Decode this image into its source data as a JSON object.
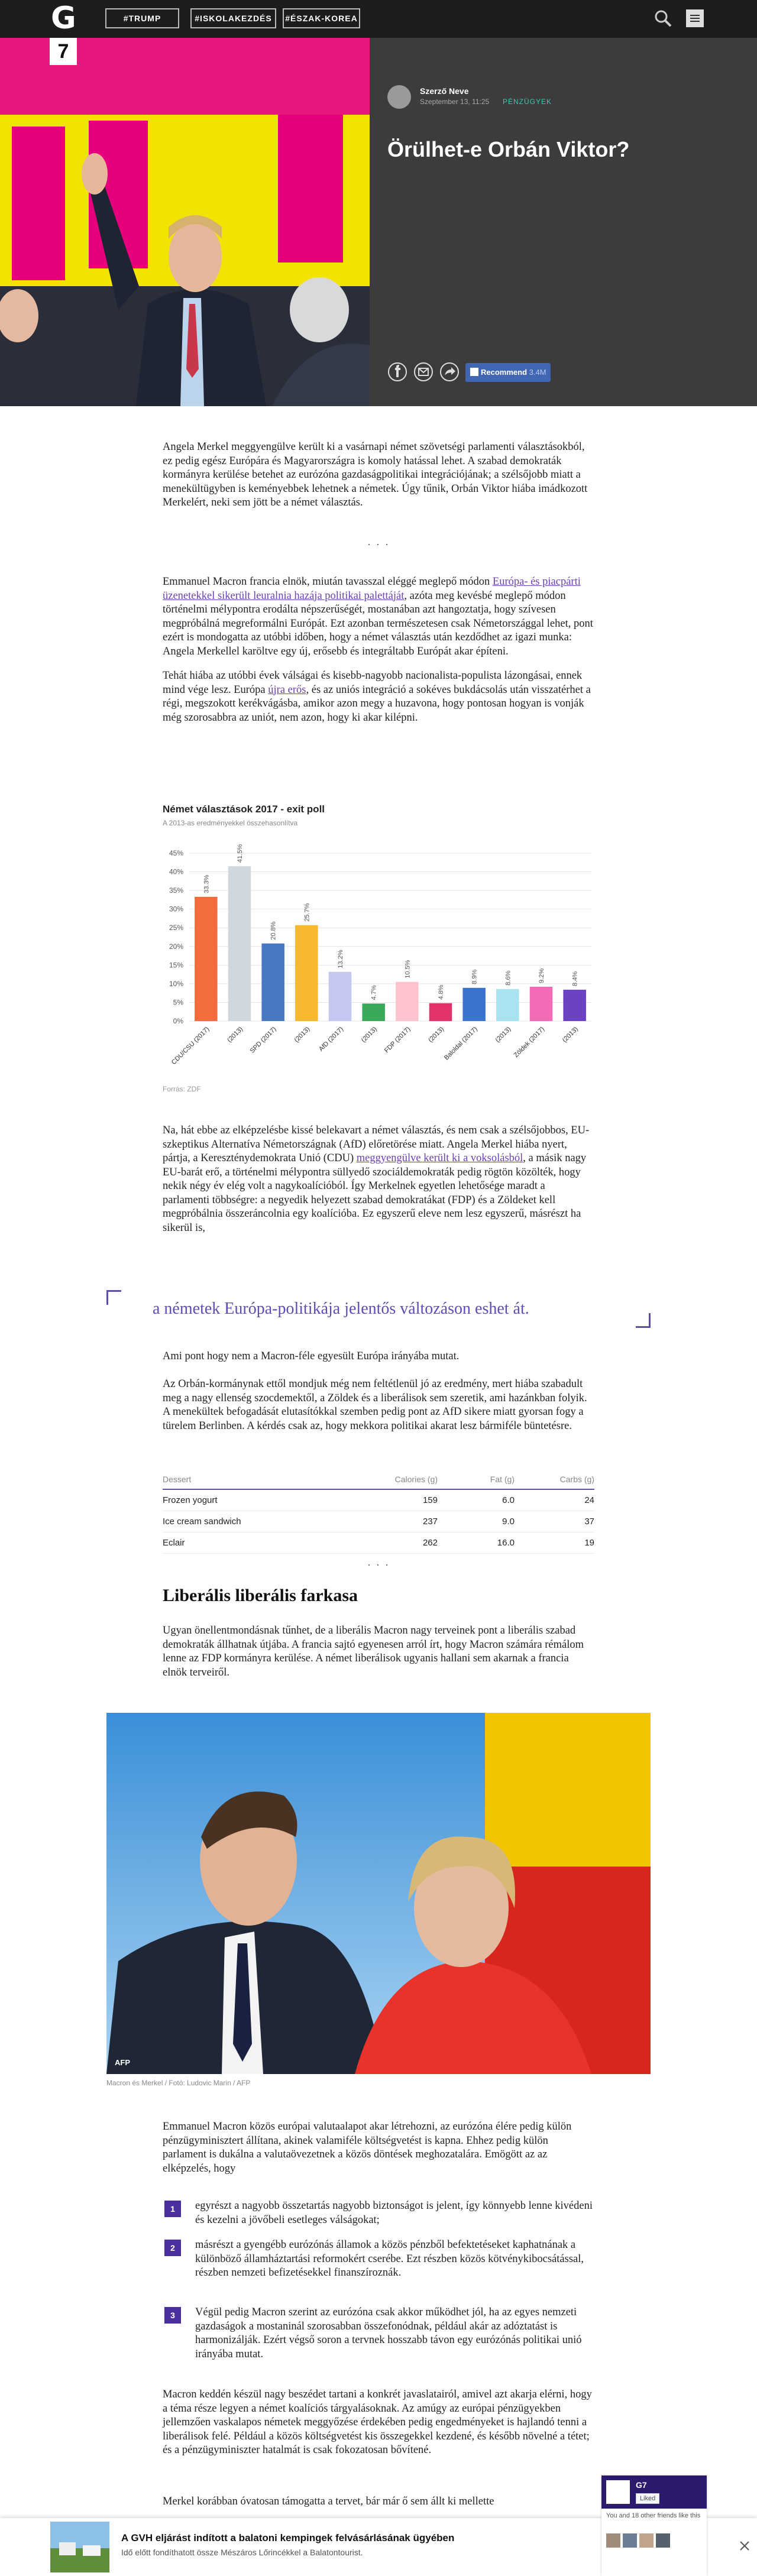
{
  "header": {
    "logo": "G",
    "logo_badge": "7",
    "tags": [
      "#TRUMP",
      "#ISKOLAKEZDÉS",
      "#ÉSZAK-KOREA"
    ]
  },
  "hero": {
    "author": "Szerző Neve",
    "date": "Szeptember 13, 11:25",
    "category": "PÉNZÜGYEK",
    "title": "Örülhet-e Orbán Viktor?",
    "recommend": "Recommend",
    "recommend_count": "3.4M"
  },
  "article": {
    "p1": "Angela Merkel meggyengülve került ki a vasárnapi német szövetségi parlamenti választásokból, ez pedig egész Európára és Magyarországra is komoly hatással lehet. A szabad demokraták kormányra kerülése betehet az eurózóna gazdaságpolitikai integrációjának; a szélsőjobb miatt a menekültügyben is keményebbek lehetnek a németek. Úgy tűnik, Orbán Viktor hiába imádkozott Merkelért, neki sem jött be a német választás.",
    "separator": "· · ·",
    "p2": {
      "before": "Emmanuel Macron francia elnök, miután tavasszal eléggé meglepő módon ",
      "link": "Európa- és piacpárti üzenetekkel sikerült leuralnia hazája politikai palettáját",
      "after": ", azóta meg kevésbé meglepő módon történelmi mélypontra erodálta népszerűségét, mostanában azt hangoztatja, hogy szívesen megpróbálná megreformálni Európát. Ezt azonban természetesen csak Németországgal lehet, pont ezért is mondogatta az utóbbi időben, hogy a német választás után kezdődhet az igazi munka: Angela Merkellel karöltve egy új, erősebb és integráltabb Európát akar építeni."
    },
    "p3": {
      "before": "Tehát hiába az utóbbi évek válságai és kisebb-nagyobb nacionalista-populista lázongásai, ennek mind vége lesz. Európa ",
      "link": "újra erős",
      "after": ", és az uniós integráció a sokéves bukdácsolás után visszatérhet a régi, megszokott kerékvágásba, amikor azon megy a huzavona, hogy pontosan hogyan is vonják még szorosabbra az uniót, nem azon, hogy ki akar kilépni."
    },
    "p4": {
      "before": "Na, hát ebbe az elképzelésbe kissé belekavart a német választás, és nem csak a szélsőjobbos, EU-szkeptikus Alternatíva Németországnak (AfD) előretörése miatt. Angela Merkel hiába nyert, pártja, a Kereszténydemokrata Unió (CDU) ",
      "link": "meggyengülve került ki a voksolásból",
      "after": ", a másik nagy EU-barát erő, a történelmi mélypontra süllyedő szociáldemokraták pedig rögtön közölték, hogy nekik négy év elég volt a nagykoalícióból. Így Merkelnek egyetlen lehetősége maradt a parlamenti többségre: a negyedik helyezett szabad demokratákat (FDP) és a Zöldeket kell megpróbálnia összeráncolnia egy koalícióba. Ez egyszerű eleve nem lesz egyszerű, másrészt ha sikerül is,"
    },
    "pullquote": "a németek Európa-politikája jelentős változáson eshet át.",
    "p5": "Ami pont hogy nem a Macron-féle egyesült Európa irányába mutat.",
    "p6": "Az Orbán-kormánynak ettől mondjuk még nem feltétlenül jó az eredmény, mert hiába szabadult meg a nagy ellenség szocdemektől, a Zöldek és a liberálisok sem szeretik, ami hazánkban folyik. A menekültek befogadását elutasítókkal szemben pedig pont az AfD sikere miatt gyorsan fogy a türelem Berlinben. A kérdés csak az, hogy mekkora politikai akarat lesz bármiféle büntetésre.",
    "table": {
      "columns": [
        "Dessert",
        "Calories (g)",
        "Fat (g)",
        "Carbs (g)"
      ],
      "rows": [
        [
          "Frozen yogurt",
          "159",
          "6.0",
          "24"
        ],
        [
          "Ice cream sandwich",
          "237",
          "9.0",
          "37"
        ],
        [
          "Eclair",
          "262",
          "16.0",
          "19"
        ]
      ]
    },
    "subheading": "Liberális liberális farkasa",
    "p7": "Ugyan önellentmondásnak tűnhet, de a liberális Macron nagy terveinek pont a liberális szabad demokraták állhatnak útjába. A francia sajtó egyenesen arról írt, hogy Macron számára rémálom lenne az FDP kormányra kerülése. A német liberálisok ugyanis hallani sem akarnak a francia elnök terveiről.",
    "photo_credit": "AFP",
    "caption": "Macron és Merkel / Fotó: Ludovic Marin / AFP",
    "p8": "Emmanuel Macron közös európai valutaalapot akar létrehozni, az eurózóna élére pedig külön pénzügyminisztert állítana, akinek valamiféle költségvetést is kapna. Ehhez pedig külön parlament is dukálna a valutaövezetnek a közös döntések meghozatalára. Emögött az az elképzelés, hogy",
    "list": [
      {
        "number": 1,
        "text": "egyrészt a nagyobb összetartás nagyobb biztonságot is jelent, így könnyebb lenne kivédeni és kezelni a jövőbeli esetleges válságokat;"
      },
      {
        "number": 2,
        "text": "másrészt a gyengébb eurózónás államok a közös pénzből befektetéseket kaphatnának a különböző államháztartási reformokért cserébe. Ezt részben közös kötvénykibocsátással, részben nemzeti befizetésekkel finanszíroznák."
      },
      {
        "number": 3,
        "text": "Végül pedig Macron szerint az eurózóna csak akkor működhet jól, ha az egyes nemzeti gazdaságok a mostaninál szorosabban összefonódnak, például akár az adóztatást is harmonizálják. Ezért végső soron a tervnek hosszabb távon egy eurózónás politikai unió irányába mutat."
      }
    ],
    "p9": "Macron keddén készül nagy beszédet tartani a konkrét javaslatairól, amivel azt akarja elérni, hogy a téma része legyen a német koalíciós tárgyalásoknak. Az amúgy az európai pénzügyekben jellemzően vaskalapos németek meggyőzése érdekében pedig engedményeket is hajlandó tenni a liberálisok felé. Például a közös költségvetést kis összegekkel kezdené, és később növelné a tétet; és a pénzügyminiszter hatalmát is csak fokozatosan bővítené.",
    "p10": "Merkel korábban óvatosan támogatta a tervet, bár már ő sem állt ki mellette"
  },
  "chart_data": {
    "type": "bar",
    "title": "Német választások 2017 - exit poll",
    "subtitle": "A 2013-as eredményekkel összehasonlítva",
    "source": "Forrás: ZDF",
    "categories": [
      "CDU/CSU (2017)",
      "(2013)",
      "SPD (2017)",
      "(2013)",
      "AfD (2017)",
      "(2013)",
      "FDP (2017)",
      "(2013)",
      "Baloldal (2017)",
      "(2013)",
      "Zöldek (2017)",
      "(2013)"
    ],
    "values": [
      33.3,
      41.5,
      20.8,
      25.7,
      13.2,
      4.7,
      10.5,
      4.8,
      8.9,
      8.6,
      9.2,
      8.4
    ],
    "value_labels": [
      "33.3%",
      "41.5%",
      "20.8%",
      "25.7%",
      "13.2%",
      "4.7%",
      "10.5%",
      "4.8%",
      "8.9%",
      "8.6%",
      "9.2%",
      "8.4%"
    ],
    "colors": [
      "#f26c3c",
      "#cfd7df",
      "#4a78c0",
      "#f6b830",
      "#c4c8f0",
      "#3aa95a",
      "#ffc3d0",
      "#e3336b",
      "#3b73d1",
      "#a9e3ef",
      "#f26bb5",
      "#6b42c4"
    ],
    "ylim": [
      0,
      45
    ],
    "yticks": [
      {
        "value": 0,
        "label": "0%"
      },
      {
        "value": 5,
        "label": "5%"
      },
      {
        "value": 10,
        "label": "10%"
      },
      {
        "value": 15,
        "label": "15%"
      },
      {
        "value": 20,
        "label": "20%"
      },
      {
        "value": 25,
        "label": "25%"
      },
      {
        "value": 30,
        "label": "30%"
      },
      {
        "value": 35,
        "label": "35%"
      },
      {
        "value": 40,
        "label": "40%"
      },
      {
        "value": 45,
        "label": "45%"
      }
    ],
    "grid": true
  },
  "promo": {
    "title": "A GVH eljárást indított a balatoni kempingek felvásárlásának ügyében",
    "subtitle": "Idő előtt fondíthatott össze Mészáros Lőrincékkel a Balatontourist."
  },
  "widget": {
    "name": "G7",
    "liked": "Liked",
    "friends": "You and 18 other friends like this"
  }
}
